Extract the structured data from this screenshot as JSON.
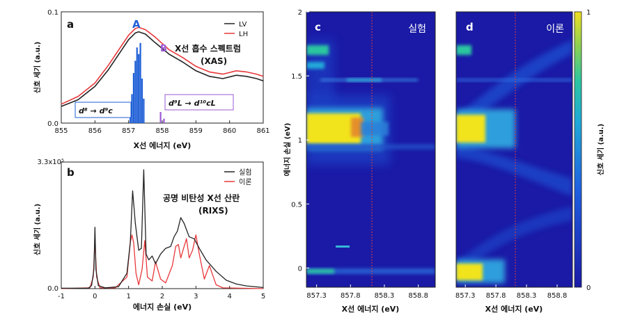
{
  "chart_data": [
    {
      "panel_label": "a",
      "type": "line",
      "title_lines": [
        "X선 흡수 스펙트럼",
        "(XAS)"
      ],
      "xlabel": "X선 에너지 (eV)",
      "ylabel": "신호 세기 (a.u.)",
      "xlim": [
        855,
        861
      ],
      "ylim": [
        0,
        0.1
      ],
      "xticks": [
        "855",
        "856",
        "857",
        "858",
        "859",
        "860",
        "861"
      ],
      "yticks": [
        "0.0",
        "0.1"
      ],
      "legend": {
        "placement": "top-right",
        "entries": [
          "LV",
          "LH"
        ]
      },
      "series": [
        {
          "name": "LV",
          "color": "#222222",
          "x": [
            855,
            855.5,
            856,
            856.4,
            856.8,
            857.0,
            857.2,
            857.3,
            857.5,
            857.8,
            858.2,
            858.6,
            859.0,
            859.4,
            859.8,
            860.2,
            860.5,
            860.8,
            861
          ],
          "y": [
            0.015,
            0.021,
            0.033,
            0.048,
            0.066,
            0.075,
            0.081,
            0.082,
            0.08,
            0.072,
            0.062,
            0.055,
            0.047,
            0.042,
            0.04,
            0.043,
            0.042,
            0.04,
            0.038
          ]
        },
        {
          "name": "LH",
          "color": "#e8383b",
          "x": [
            855,
            855.5,
            856,
            856.4,
            856.8,
            857.0,
            857.2,
            857.3,
            857.5,
            857.8,
            858.2,
            858.6,
            859.0,
            859.4,
            859.8,
            860.2,
            860.5,
            860.8,
            861
          ],
          "y": [
            0.017,
            0.024,
            0.036,
            0.052,
            0.07,
            0.079,
            0.085,
            0.086,
            0.084,
            0.077,
            0.066,
            0.059,
            0.051,
            0.046,
            0.044,
            0.047,
            0.046,
            0.044,
            0.042
          ]
        }
      ],
      "sticks": [
        {
          "color": "#1f5fd6",
          "points": [
            [
              857.05,
              0.016
            ],
            [
              857.1,
              0.026
            ],
            [
              857.15,
              0.045
            ],
            [
              857.2,
              0.056
            ],
            [
              857.25,
              0.068
            ],
            [
              857.3,
              0.062
            ],
            [
              857.35,
              0.072
            ],
            [
              857.4,
              0.04
            ],
            [
              857.45,
              0.022
            ]
          ]
        },
        {
          "color": "#9b59d6",
          "points": [
            [
              857.95,
              0.01
            ],
            [
              858.05,
              0.004
            ]
          ]
        }
      ],
      "annotations": [
        {
          "text": "A",
          "color": "#1f5fd6",
          "x": 857.3,
          "y": 0.092
        },
        {
          "text": "B",
          "color": "#9b59d6",
          "x": 857.85,
          "y": 0.069
        }
      ],
      "transition_labels": [
        {
          "text": "d⁸ → d⁹c",
          "color": "#1f5fd6"
        },
        {
          "text": "d⁹L → d¹⁰cL",
          "color": "#9b59d6"
        }
      ]
    },
    {
      "panel_label": "b",
      "type": "line",
      "title_lines": [
        "공명 비탄성 X선 산란",
        "(RIXS)"
      ],
      "xlabel": "에너지 손실 (eV)",
      "ylabel": "신호 세기 (a.u.)",
      "xlim": [
        -1,
        5
      ],
      "ylim": [
        0,
        3.3
      ],
      "y_unit_multiplier_label": "3.3x10⁵",
      "xticks": [
        "-1",
        "0",
        "1",
        "2",
        "3",
        "4",
        "5"
      ],
      "yticks": [
        "0.0",
        "3.3x10⁵"
      ],
      "legend": {
        "placement": "top-right",
        "entries": [
          "실험",
          "이론"
        ]
      },
      "series": [
        {
          "name": "실험",
          "color": "#222222",
          "x": [
            -1,
            -0.2,
            -0.1,
            -0.03,
            0,
            0.03,
            0.1,
            0.3,
            0.7,
            0.95,
            1.05,
            1.12,
            1.2,
            1.3,
            1.38,
            1.45,
            1.52,
            1.6,
            1.7,
            1.8,
            1.95,
            2.1,
            2.25,
            2.35,
            2.45,
            2.55,
            2.65,
            2.8,
            2.95,
            3.1,
            3.3,
            3.6,
            3.9,
            4.2,
            4.5,
            5
          ],
          "y": [
            0.01,
            0.01,
            0.08,
            0.5,
            1.6,
            0.5,
            0.08,
            0.02,
            0.05,
            0.4,
            1.2,
            2.55,
            1.7,
            1.0,
            1.05,
            3.1,
            0.9,
            0.75,
            0.85,
            0.65,
            0.9,
            1.05,
            1.1,
            1.35,
            1.5,
            1.85,
            1.7,
            1.35,
            1.3,
            1.05,
            0.75,
            0.45,
            0.22,
            0.12,
            0.07,
            0.03
          ]
        },
        {
          "name": "이론",
          "color": "#e8383b",
          "x": [
            -1,
            -0.15,
            -0.05,
            0,
            0.05,
            0.15,
            0.6,
            0.95,
            1.05,
            1.1,
            1.15,
            1.22,
            1.3,
            1.4,
            1.48,
            1.56,
            1.7,
            1.8,
            1.95,
            2.1,
            2.3,
            2.4,
            2.48,
            2.55,
            2.65,
            2.72,
            2.8,
            2.9,
            3.0,
            3.1,
            3.25,
            3.4,
            3.5,
            3.6,
            3.8,
            5
          ],
          "y": [
            0.0,
            0.02,
            0.3,
            1.25,
            0.3,
            0.02,
            0.02,
            0.3,
            1.2,
            1.4,
            1.2,
            0.4,
            0.1,
            0.5,
            1.25,
            0.3,
            0.2,
            0.7,
            0.25,
            0.15,
            0.6,
            1.1,
            1.15,
            0.8,
            1.1,
            1.3,
            0.8,
            1.0,
            1.4,
            0.9,
            0.25,
            0.6,
            0.35,
            0.1,
            0.02,
            0.0
          ]
        }
      ]
    },
    {
      "panel_label": "c",
      "type": "heatmap",
      "title": "실험",
      "xlabel": "X선 에너지 (eV)",
      "ylabel": "에너지 손실 (eV)",
      "xlim": [
        857.15,
        859.05
      ],
      "ylim": [
        -0.15,
        2.0
      ],
      "xticks": [
        "857.3",
        "857.8",
        "858.3",
        "858.8"
      ],
      "yticks": [
        "0",
        "0.5",
        "1",
        "1.5",
        "2"
      ],
      "marker_line_x": 858.1
    },
    {
      "panel_label": "d",
      "type": "heatmap",
      "title": "이론",
      "xlabel": "X선 에너지 (eV)",
      "xlim": [
        857.15,
        859.05
      ],
      "ylim": [
        -0.15,
        2.0
      ],
      "xticks": [
        "857.3",
        "857.8",
        "858.3",
        "858.8"
      ],
      "marker_line_x": 858.1
    },
    {
      "type": "colorbar",
      "label": "신호 세기 (a.u.)",
      "ticks": [
        "0",
        "1"
      ],
      "colors": [
        "#1a1aa6",
        "#1f5fe0",
        "#20a8d8",
        "#2cc6a0",
        "#8fd14f",
        "#f0e020"
      ]
    }
  ]
}
